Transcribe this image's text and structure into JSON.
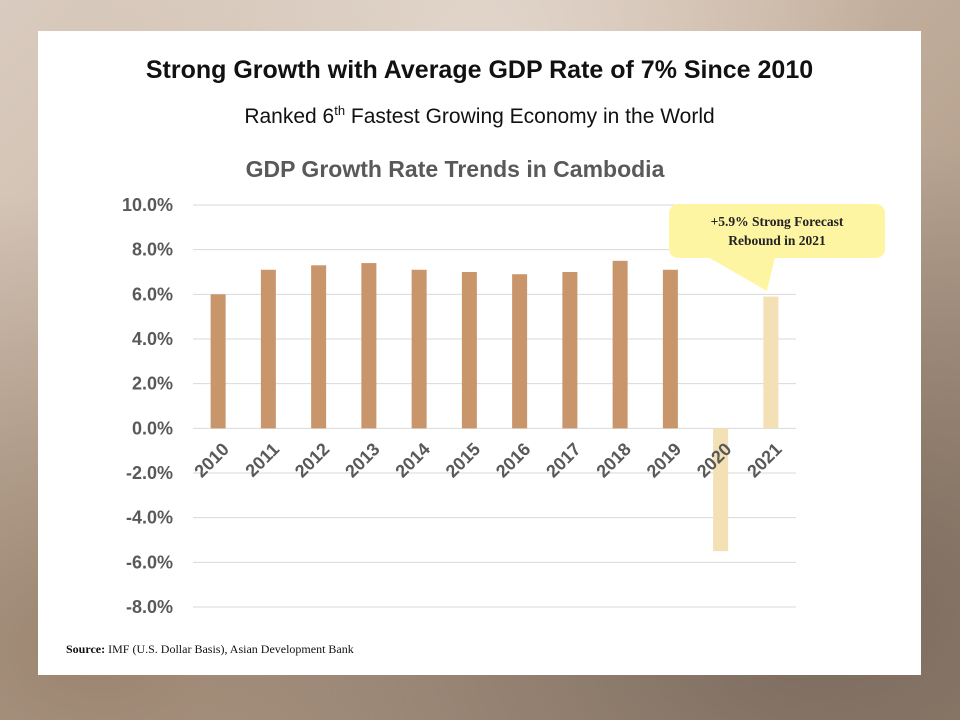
{
  "slide": {
    "title": "Strong Growth with Average GDP Rate of 7% Since 2010",
    "subtitle_prefix": "Ranked 6",
    "subtitle_sup": "th",
    "subtitle_suffix": " Fastest Growing Economy in the World",
    "source_label": "Source:",
    "source_text": " IMF (U.S. Dollar Basis), Asian Development Bank",
    "callout_line1": "+5.9% Strong Forecast",
    "callout_line2": "Rebound in 2021"
  },
  "colors": {
    "actual_bar": "#c9956b",
    "forecast_bar": "#f3e0b5",
    "callout_bg": "#fef5a3",
    "gridline": "#d9d9d9",
    "axis_text": "#595959"
  },
  "chart_data": {
    "type": "bar",
    "title": "GDP Growth Rate Trends in Cambodia",
    "xlabel": "",
    "ylabel": "",
    "ylim": [
      -8,
      10
    ],
    "yticks": [
      10,
      8,
      6,
      4,
      2,
      0,
      -2,
      -4,
      -6,
      -8
    ],
    "ytick_labels": [
      "10.0%",
      "8.0%",
      "6.0%",
      "4.0%",
      "2.0%",
      "0.0%",
      "-2.0%",
      "-4.0%",
      "-6.0%",
      "-8.0%"
    ],
    "grid": true,
    "categories": [
      "2010",
      "2011",
      "2012",
      "2013",
      "2014",
      "2015",
      "2016",
      "2017",
      "2018",
      "2019",
      "2020",
      "2021"
    ],
    "values": [
      6.0,
      7.1,
      7.3,
      7.4,
      7.1,
      7.0,
      6.9,
      7.0,
      7.5,
      7.1,
      -5.5,
      5.9
    ],
    "forecast": [
      false,
      false,
      false,
      false,
      false,
      false,
      false,
      false,
      false,
      false,
      true,
      true
    ]
  }
}
